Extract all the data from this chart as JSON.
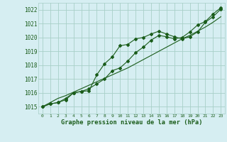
{
  "title": "Graphe pression niveau de la mer (hPa)",
  "bg_color": "#d6eef2",
  "plot_bg_color": "#d6eef2",
  "grid_color": "#a8cfc8",
  "line_color": "#1a5c1a",
  "ylim": [
    1014.5,
    1022.5
  ],
  "xlim": [
    -0.5,
    23.5
  ],
  "yticks": [
    1015,
    1016,
    1017,
    1018,
    1019,
    1020,
    1021,
    1022
  ],
  "xticks": [
    0,
    1,
    2,
    3,
    4,
    5,
    6,
    7,
    8,
    9,
    10,
    11,
    12,
    13,
    14,
    15,
    16,
    17,
    18,
    19,
    20,
    21,
    22,
    23
  ],
  "series1": [
    1015.0,
    1015.2,
    1015.3,
    1015.5,
    1016.0,
    1016.1,
    1016.15,
    1017.3,
    1018.1,
    1018.6,
    1019.4,
    1019.5,
    1019.9,
    1020.0,
    1020.25,
    1020.45,
    1020.25,
    1020.05,
    1019.9,
    1020.05,
    1020.4,
    1021.1,
    1021.5,
    1022.05
  ],
  "series2": [
    1015.0,
    1015.2,
    1015.3,
    1015.6,
    1016.0,
    1016.1,
    1016.3,
    1016.65,
    1017.0,
    1017.6,
    1017.8,
    1018.3,
    1018.9,
    1019.3,
    1019.8,
    1020.15,
    1020.05,
    1019.9,
    1020.0,
    1020.4,
    1020.9,
    1021.15,
    1021.7,
    1022.15
  ],
  "trend": [
    1015.0,
    1015.3,
    1015.6,
    1015.8,
    1016.05,
    1016.3,
    1016.55,
    1016.8,
    1017.05,
    1017.3,
    1017.55,
    1017.8,
    1018.1,
    1018.4,
    1018.7,
    1019.0,
    1019.3,
    1019.6,
    1019.9,
    1020.15,
    1020.45,
    1020.75,
    1021.1,
    1021.5
  ]
}
